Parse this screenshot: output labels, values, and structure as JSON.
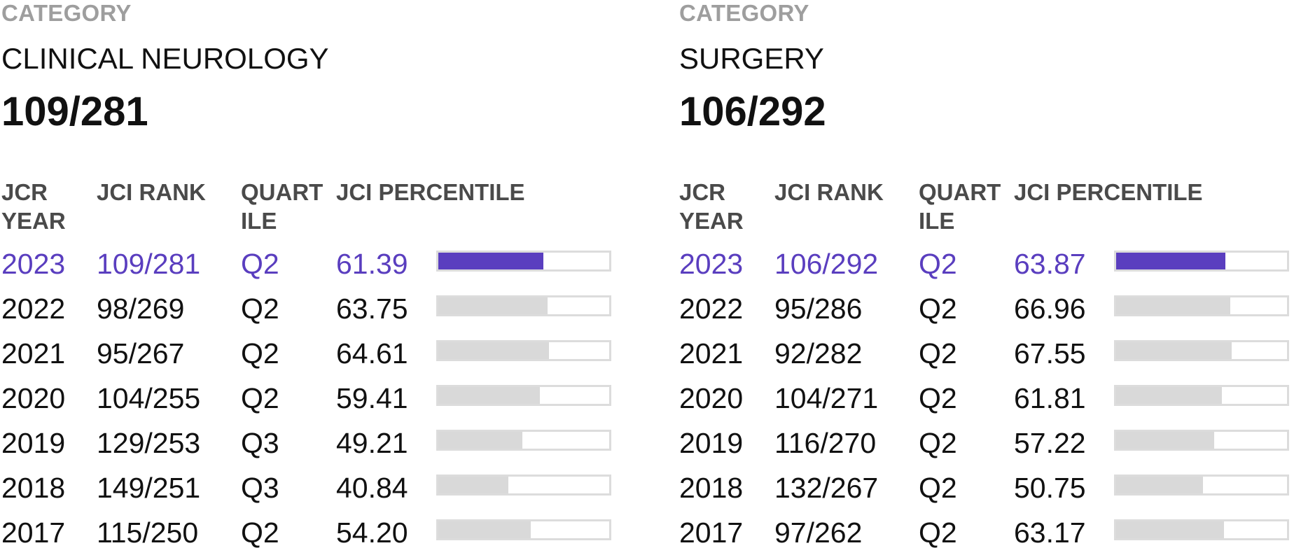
{
  "panels": [
    {
      "category_label": "CATEGORY",
      "category_name": "CLINICAL NEUROLOGY",
      "category_rank": "109/281",
      "columns": {
        "year": "JCR YEAR",
        "rank": "JCI RANK",
        "quartile": "QUARTILE",
        "percentile": "JCI PERCENTILE"
      },
      "rows": [
        {
          "year": "2023",
          "rank": "109/281",
          "quartile": "Q2",
          "percentile": "61.39",
          "percentile_value": 61.39,
          "current": true
        },
        {
          "year": "2022",
          "rank": "98/269",
          "quartile": "Q2",
          "percentile": "63.75",
          "percentile_value": 63.75,
          "current": false
        },
        {
          "year": "2021",
          "rank": "95/267",
          "quartile": "Q2",
          "percentile": "64.61",
          "percentile_value": 64.61,
          "current": false
        },
        {
          "year": "2020",
          "rank": "104/255",
          "quartile": "Q2",
          "percentile": "59.41",
          "percentile_value": 59.41,
          "current": false
        },
        {
          "year": "2019",
          "rank": "129/253",
          "quartile": "Q3",
          "percentile": "49.21",
          "percentile_value": 49.21,
          "current": false
        },
        {
          "year": "2018",
          "rank": "149/251",
          "quartile": "Q3",
          "percentile": "40.84",
          "percentile_value": 40.84,
          "current": false
        },
        {
          "year": "2017",
          "rank": "115/250",
          "quartile": "Q2",
          "percentile": "54.20",
          "percentile_value": 54.2,
          "current": false
        }
      ]
    },
    {
      "category_label": "CATEGORY",
      "category_name": "SURGERY",
      "category_rank": "106/292",
      "columns": {
        "year": "JCR YEAR",
        "rank": "JCI RANK",
        "quartile": "QUARTILE",
        "percentile": "JCI PERCENTILE"
      },
      "rows": [
        {
          "year": "2023",
          "rank": "106/292",
          "quartile": "Q2",
          "percentile": "63.87",
          "percentile_value": 63.87,
          "current": true
        },
        {
          "year": "2022",
          "rank": "95/286",
          "quartile": "Q2",
          "percentile": "66.96",
          "percentile_value": 66.96,
          "current": false
        },
        {
          "year": "2021",
          "rank": "92/282",
          "quartile": "Q2",
          "percentile": "67.55",
          "percentile_value": 67.55,
          "current": false
        },
        {
          "year": "2020",
          "rank": "104/271",
          "quartile": "Q2",
          "percentile": "61.81",
          "percentile_value": 61.81,
          "current": false
        },
        {
          "year": "2019",
          "rank": "116/270",
          "quartile": "Q2",
          "percentile": "57.22",
          "percentile_value": 57.22,
          "current": false
        },
        {
          "year": "2018",
          "rank": "132/267",
          "quartile": "Q2",
          "percentile": "50.75",
          "percentile_value": 50.75,
          "current": false
        },
        {
          "year": "2017",
          "rank": "97/262",
          "quartile": "Q2",
          "percentile": "63.17",
          "percentile_value": 63.17,
          "current": false
        }
      ]
    }
  ],
  "colors": {
    "accent": "#5a3ebf",
    "bar_fill": "#d9d9d9",
    "bar_track_border": "#dcdcdc",
    "label_gray": "#9e9e9e",
    "header_gray": "#4a4a4a"
  }
}
